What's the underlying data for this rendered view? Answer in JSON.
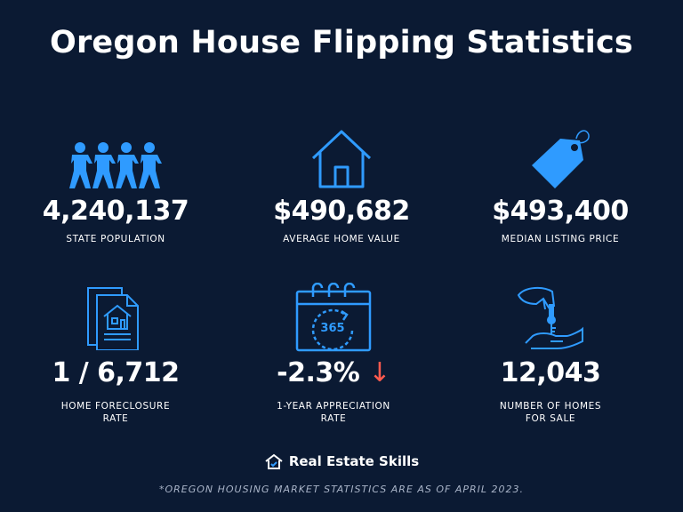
{
  "title": "Oregon House Flipping Statistics",
  "stats": [
    {
      "value": "4,240,137",
      "label": "STATE POPULATION",
      "icon": "people-icon"
    },
    {
      "value": "$490,682",
      "label": "AVERAGE HOME VALUE",
      "icon": "house-icon"
    },
    {
      "value": "$493,400",
      "label": "MEDIAN LISTING PRICE",
      "icon": "price-tag-icon"
    },
    {
      "value": "1 / 6,712",
      "label_line1": "HOME FORECLOSURE",
      "label_line2": "RATE",
      "icon": "document-house-icon"
    },
    {
      "value": "-2.3%",
      "arrow": "↓",
      "label_line1": "1-YEAR APPRECIATION",
      "label_line2": "RATE",
      "icon": "calendar-365-icon",
      "calendar_text": "365"
    },
    {
      "value": "12,043",
      "label_line1": "NUMBER OF HOMES",
      "label_line2": "FOR SALE",
      "icon": "hand-key-icon"
    }
  ],
  "brand": "Real Estate Skills",
  "footnote": "*OREGON HOUSING MARKET STATISTICS ARE AS OF APRIL 2023.",
  "colors": {
    "background": "#0b1a33",
    "accent": "#2f9bff",
    "down_arrow": "#ff5a4e",
    "text": "#ffffff"
  }
}
